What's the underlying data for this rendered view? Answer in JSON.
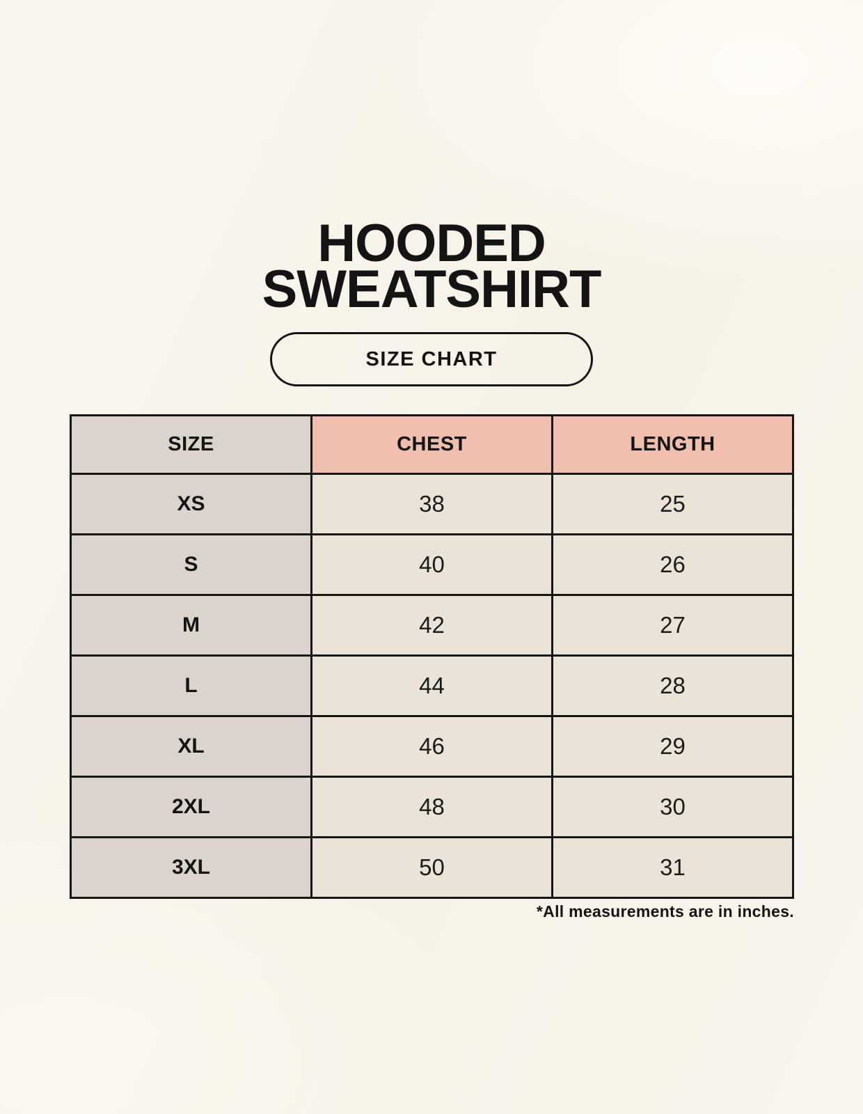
{
  "page": {
    "title_line1": "HOODED",
    "title_line2": "SWEATSHIRT",
    "badge_label": "SIZE CHART",
    "footnote": "*All measurements are in inches."
  },
  "chart_data": {
    "type": "table",
    "title": "HOODED SWEATSHIRT",
    "subtitle": "SIZE CHART",
    "columns": [
      "SIZE",
      "CHEST",
      "LENGTH"
    ],
    "rows": [
      [
        "XS",
        "38",
        "25"
      ],
      [
        "S",
        "40",
        "26"
      ],
      [
        "M",
        "42",
        "27"
      ],
      [
        "L",
        "44",
        "28"
      ],
      [
        "XL",
        "46",
        "29"
      ],
      [
        "2XL",
        "48",
        "30"
      ],
      [
        "3XL",
        "50",
        "31"
      ]
    ],
    "footnote": "*All measurements are in inches.",
    "units": "inches"
  },
  "colors": {
    "background": "#f8f3ea",
    "header_accent": "#efbeae",
    "label_column": "#dbd4cd",
    "cell_background": "#eae3d8",
    "border": "#161616",
    "text": "#141414"
  }
}
